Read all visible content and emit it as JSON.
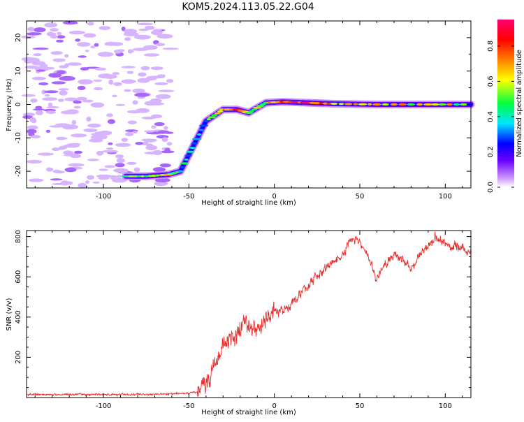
{
  "title": "KOM5.2024.113.05.22.G04",
  "chart_data": [
    {
      "type": "heatmap",
      "xlabel": "Height of straight line (km)",
      "ylabel": "Frequency (Hz)",
      "xlim": [
        -145,
        115
      ],
      "ylim": [
        -25,
        25
      ],
      "xticks": [
        -100,
        -50,
        0,
        50,
        100
      ],
      "yticks": [
        -20,
        -10,
        0,
        10,
        20
      ],
      "colorbar": {
        "label": "Normalized spectral amplitude",
        "range": [
          0.0,
          0.95
        ],
        "ticks": [
          0.0,
          0.2,
          0.4,
          0.6,
          0.8
        ],
        "colors": [
          "#ffffff",
          "#c890ff",
          "#6a00ff",
          "#0000ff",
          "#00e5ff",
          "#00ff40",
          "#ffff00",
          "#ff8000",
          "#ff0000",
          "#ff0070"
        ]
      },
      "signal_track": {
        "points": [
          {
            "x": -87,
            "y": -21.5,
            "amplitude": 0.5
          },
          {
            "x": -75,
            "y": -21.5,
            "amplitude": 0.55
          },
          {
            "x": -62,
            "y": -21.0,
            "amplitude": 0.6
          },
          {
            "x": -55,
            "y": -20.0,
            "amplitude": 0.4
          },
          {
            "x": -48,
            "y": -13.0,
            "amplitude": 0.35
          },
          {
            "x": -40,
            "y": -5.0,
            "amplitude": 0.4
          },
          {
            "x": -30,
            "y": -1.5,
            "amplitude": 0.7
          },
          {
            "x": -22,
            "y": -1.5,
            "amplitude": 0.85
          },
          {
            "x": -15,
            "y": -2.5,
            "amplitude": 0.55
          },
          {
            "x": -5,
            "y": 0.5,
            "amplitude": 0.6
          },
          {
            "x": 5,
            "y": 0.8,
            "amplitude": 0.9
          },
          {
            "x": 20,
            "y": 0.5,
            "amplitude": 0.85
          },
          {
            "x": 35,
            "y": 0.2,
            "amplitude": 0.75
          },
          {
            "x": 60,
            "y": 0.0,
            "amplitude": 0.7
          },
          {
            "x": 90,
            "y": 0.0,
            "amplitude": 0.65
          },
          {
            "x": 115,
            "y": 0.0,
            "amplitude": 0.6
          }
        ]
      }
    },
    {
      "type": "line",
      "xlabel": "Height of straight line (km)",
      "ylabel": "SNR (v/v)",
      "xlim": [
        -145,
        115
      ],
      "ylim": [
        0,
        830
      ],
      "xticks": [
        -100,
        -50,
        0,
        50,
        100
      ],
      "yticks": [
        200,
        400,
        600,
        800
      ],
      "series": [
        {
          "color": "#e8302e",
          "x": [
            -145,
            -120,
            -100,
            -80,
            -60,
            -50,
            -45,
            -40,
            -35,
            -30,
            -25,
            -20,
            -15,
            -10,
            -5,
            0,
            5,
            10,
            15,
            20,
            25,
            30,
            35,
            40,
            45,
            50,
            55,
            60,
            65,
            70,
            75,
            80,
            85,
            90,
            95,
            100,
            105,
            110,
            115
          ],
          "values": [
            15,
            15,
            15,
            15,
            18,
            22,
            30,
            60,
            160,
            260,
            300,
            320,
            380,
            340,
            390,
            420,
            430,
            470,
            510,
            560,
            600,
            640,
            680,
            700,
            790,
            770,
            690,
            590,
            660,
            720,
            680,
            650,
            700,
            760,
            800,
            760,
            750,
            740,
            720
          ]
        }
      ]
    }
  ]
}
